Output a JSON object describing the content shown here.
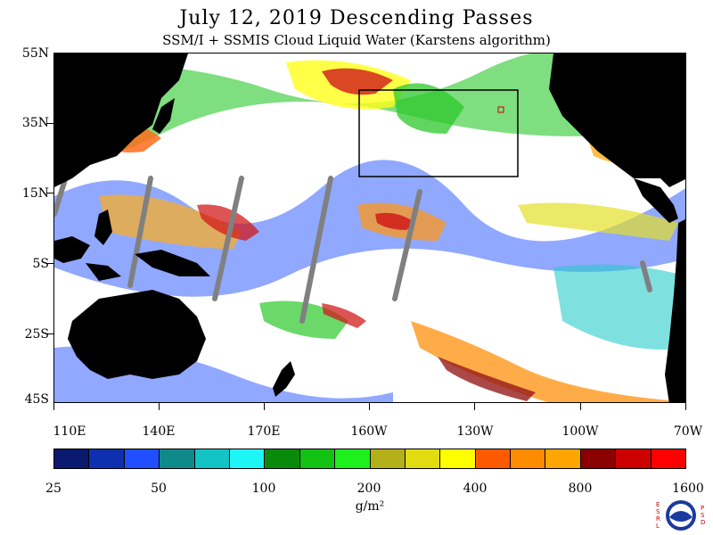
{
  "title": "July 12, 2019  Descending Passes",
  "subtitle": "SSM/I + SSMIS Cloud Liquid Water (Karstens algorithm)",
  "map": {
    "latitude_labels": [
      "55N",
      "35N",
      "15N",
      "5S",
      "25S",
      "45S"
    ],
    "longitude_labels": [
      "110E",
      "140E",
      "170E",
      "160W",
      "130W",
      "100W",
      "70W"
    ],
    "land_color": "#000000",
    "no_data_color": "#ffffff",
    "swath_gap_color": "#808080",
    "highlight_box": "black rectangle over NE Pacific"
  },
  "colorbar": {
    "colors": [
      "#0a1a6e",
      "#0d2fb0",
      "#1f4fff",
      "#0f8a8a",
      "#12c4c4",
      "#1ef5f5",
      "#0a8a0a",
      "#13c213",
      "#1ef01e",
      "#b4b01a",
      "#e0dc10",
      "#ffff00",
      "#ff5a00",
      "#ff8c00",
      "#ffa500",
      "#8b0000",
      "#cc0000",
      "#ff0000"
    ],
    "labels": [
      "25",
      "50",
      "100",
      "200",
      "400",
      "800",
      "1600"
    ],
    "unit": "g/m²"
  },
  "logo": {
    "left_letters": "ESRL",
    "right_letters": "PSD",
    "name": "noaa-logo"
  }
}
